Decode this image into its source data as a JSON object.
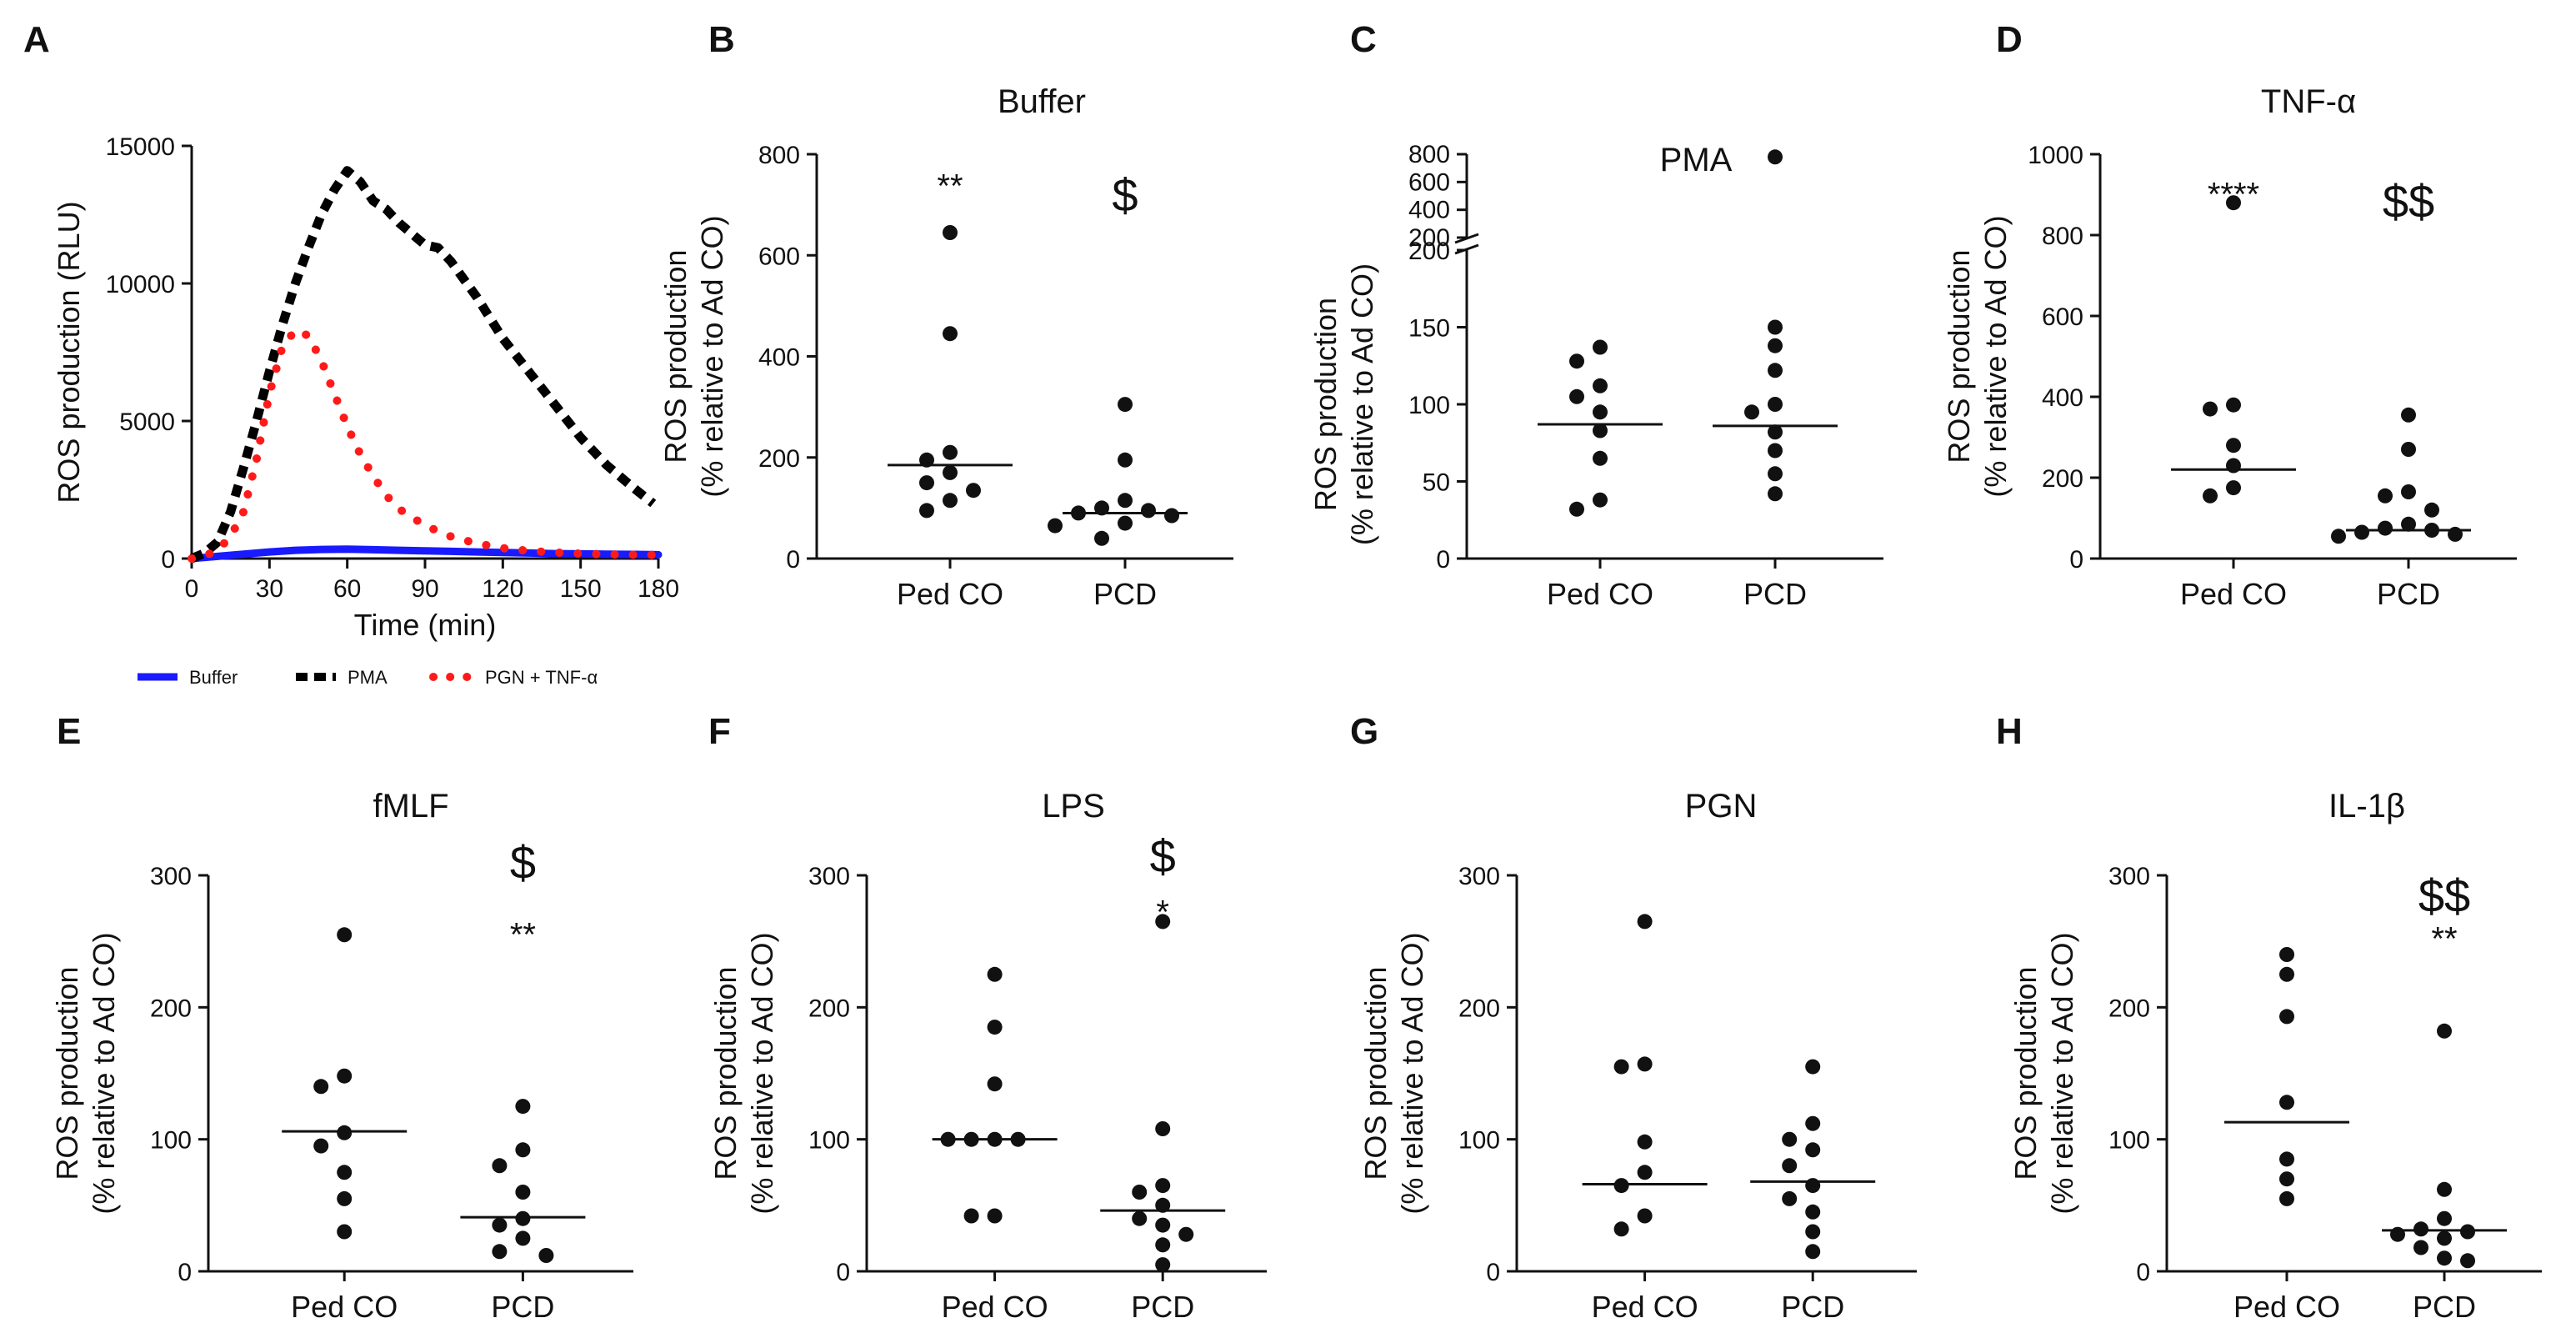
{
  "panels": [
    {
      "id": "A",
      "letter": "A",
      "chart_data": {
        "type": "line",
        "title": "",
        "xlabel": "Time (min)",
        "ylabel": "ROS production (RLU)",
        "xlim": [
          0,
          180
        ],
        "ylim": [
          0,
          15000
        ],
        "xticks": [
          0,
          30,
          60,
          90,
          120,
          150,
          180
        ],
        "yticks": [
          0,
          5000,
          10000,
          15000
        ],
        "legend_position": "bottom",
        "series": [
          {
            "name": "Buffer",
            "color": "#1a1aff",
            "style": "solid",
            "x": [
              0,
              10,
              20,
              30,
              40,
              50,
              60,
              70,
              80,
              90,
              100,
              110,
              120,
              130,
              140,
              150,
              160,
              170,
              180
            ],
            "y": [
              0,
              80,
              160,
              240,
              300,
              330,
              340,
              320,
              300,
              280,
              260,
              240,
              220,
              200,
              180,
              170,
              160,
              150,
              140
            ]
          },
          {
            "name": "PMA",
            "color": "#000000",
            "style": "dash",
            "x": [
              0,
              5,
              10,
              15,
              20,
              25,
              30,
              35,
              40,
              45,
              50,
              55,
              60,
              65,
              70,
              75,
              80,
              85,
              90,
              95,
              100,
              110,
              120,
              130,
              140,
              150,
              160,
              170,
              178
            ],
            "y": [
              0,
              200,
              600,
              1700,
              3300,
              5000,
              6800,
              8500,
              10000,
              11300,
              12500,
              13400,
              14100,
              13700,
              13000,
              12700,
              12200,
              11800,
              11400,
              11300,
              10800,
              9500,
              8000,
              6800,
              5600,
              4400,
              3400,
              2600,
              2000
            ]
          },
          {
            "name": "PGN + TNF-α",
            "color": "#ff1a1a",
            "style": "dot",
            "x": [
              0,
              5,
              10,
              15,
              20,
              25,
              30,
              35,
              40,
              45,
              50,
              55,
              60,
              65,
              70,
              75,
              80,
              90,
              100,
              110,
              120,
              130,
              140,
              150,
              160,
              170,
              180
            ],
            "y": [
              0,
              100,
              300,
              800,
              1700,
              3600,
              6000,
              7700,
              8300,
              8100,
              7200,
              6000,
              4800,
              3800,
              3000,
              2300,
              1800,
              1200,
              800,
              550,
              380,
              280,
              220,
              180,
              150,
              140,
              130
            ]
          }
        ]
      }
    },
    {
      "id": "B",
      "letter": "B",
      "chart_data": {
        "type": "scatter",
        "title": "Buffer",
        "ylabel": [
          "ROS production",
          "(% relative to Ad CO)"
        ],
        "categories": [
          "Ped CO",
          "PCD"
        ],
        "ylim": [
          0,
          800
        ],
        "yticks": [
          0,
          200,
          400,
          600,
          800
        ],
        "points": [
          [
            645,
            445,
            210,
            195,
            170,
            150,
            135,
            115,
            95
          ],
          [
            305,
            195,
            115,
            100,
            95,
            90,
            85,
            70,
            65,
            40
          ]
        ],
        "medians": [
          185,
          90
        ],
        "annotations": [
          {
            "category": 0,
            "text": "**",
            "y": 745,
            "size": "normal"
          },
          {
            "category": 1,
            "text": "$",
            "y": 720,
            "size": "big"
          }
        ]
      }
    },
    {
      "id": "C",
      "letter": "C",
      "chart_data": {
        "type": "scatter",
        "title": "PMA",
        "ylabel": [
          "ROS production",
          "(% relative to Ad CO)"
        ],
        "categories": [
          "Ped CO",
          "PCD"
        ],
        "ylim": [
          0,
          200
        ],
        "yticks": [
          0,
          50,
          100,
          150,
          200
        ],
        "upper_segment": {
          "ticks": [
            200,
            400,
            600,
            800
          ]
        },
        "points": [
          [
            137,
            128,
            112,
            105,
            95,
            83,
            65,
            38,
            32
          ],
          [
            780,
            150,
            138,
            122,
            100,
            95,
            82,
            70,
            55,
            42
          ]
        ],
        "medians": [
          87,
          86
        ],
        "annotations": []
      }
    },
    {
      "id": "D",
      "letter": "D",
      "chart_data": {
        "type": "scatter",
        "title": "TNF-α",
        "ylabel": [
          "ROS production",
          "(% relative to Ad CO)"
        ],
        "categories": [
          "Ped CO",
          "PCD"
        ],
        "ylim": [
          0,
          1000
        ],
        "yticks": [
          0,
          200,
          400,
          600,
          800,
          1000
        ],
        "points": [
          [
            880,
            380,
            370,
            280,
            230,
            175,
            155
          ],
          [
            355,
            270,
            165,
            155,
            120,
            85,
            75,
            70,
            65,
            60,
            55
          ]
        ],
        "medians": [
          220,
          70
        ],
        "annotations": [
          {
            "category": 0,
            "text": "****",
            "y": 910,
            "size": "normal"
          },
          {
            "category": 1,
            "text": "$$",
            "y": 885,
            "size": "big"
          }
        ]
      }
    },
    {
      "id": "E",
      "letter": "E",
      "chart_data": {
        "type": "scatter",
        "title": "fMLF",
        "ylabel": [
          "ROS production",
          "(% relative to Ad CO)"
        ],
        "categories": [
          "Ped CO",
          "PCD"
        ],
        "ylim": [
          0,
          300
        ],
        "yticks": [
          0,
          100,
          200,
          300
        ],
        "points": [
          [
            255,
            148,
            140,
            105,
            95,
            75,
            55,
            30
          ],
          [
            125,
            92,
            80,
            60,
            40,
            35,
            25,
            15,
            12
          ]
        ],
        "medians": [
          106,
          41
        ],
        "annotations": [
          {
            "category": 1,
            "text": "$",
            "y": 310,
            "size": "big"
          },
          {
            "category": 1,
            "text": "**",
            "y": 258,
            "size": "normal"
          }
        ]
      }
    },
    {
      "id": "F",
      "letter": "F",
      "chart_data": {
        "type": "scatter",
        "title": "LPS",
        "ylabel": [
          "ROS production",
          "(% relative to Ad CO)"
        ],
        "categories": [
          "Ped CO",
          "PCD"
        ],
        "ylim": [
          0,
          300
        ],
        "yticks": [
          0,
          100,
          200,
          300
        ],
        "points": [
          [
            225,
            185,
            142,
            100,
            100,
            100,
            100,
            42,
            42
          ],
          [
            265,
            108,
            65,
            60,
            50,
            40,
            35,
            28,
            20,
            5
          ]
        ],
        "medians": [
          100,
          46
        ],
        "annotations": [
          {
            "category": 1,
            "text": "$",
            "y": 315,
            "size": "big"
          },
          {
            "category": 1,
            "text": "*",
            "y": 275,
            "size": "normal"
          }
        ]
      }
    },
    {
      "id": "G",
      "letter": "G",
      "chart_data": {
        "type": "scatter",
        "title": "PGN",
        "ylabel": [
          "ROS production",
          "(% relative to Ad CO)"
        ],
        "categories": [
          "Ped CO",
          "PCD"
        ],
        "ylim": [
          0,
          300
        ],
        "yticks": [
          0,
          100,
          200,
          300
        ],
        "points": [
          [
            265,
            157,
            155,
            98,
            75,
            65,
            42,
            32
          ],
          [
            155,
            112,
            100,
            92,
            80,
            65,
            55,
            45,
            30,
            15
          ]
        ],
        "medians": [
          66,
          68
        ],
        "annotations": []
      }
    },
    {
      "id": "H",
      "letter": "H",
      "chart_data": {
        "type": "scatter",
        "title": "IL-1β",
        "ylabel": [
          "ROS production",
          "(% relative to Ad CO)"
        ],
        "categories": [
          "Ped CO",
          "PCD"
        ],
        "ylim": [
          0,
          300
        ],
        "yticks": [
          0,
          100,
          200,
          300
        ],
        "points": [
          [
            240,
            225,
            193,
            128,
            85,
            70,
            55
          ],
          [
            182,
            62,
            40,
            32,
            30,
            28,
            25,
            18,
            10,
            8
          ]
        ],
        "medians": [
          113,
          31
        ],
        "annotations": [
          {
            "category": 1,
            "text": "$$",
            "y": 285,
            "size": "big"
          },
          {
            "category": 1,
            "text": "**",
            "y": 255,
            "size": "normal"
          }
        ]
      }
    }
  ],
  "legend": {
    "items": [
      {
        "label": "Buffer",
        "color": "#1a1aff",
        "style": "solid"
      },
      {
        "label": "PMA",
        "color": "#000000",
        "style": "dash"
      },
      {
        "label": "PGN + TNF-α",
        "color": "#ff1a1a",
        "style": "dot"
      }
    ]
  }
}
